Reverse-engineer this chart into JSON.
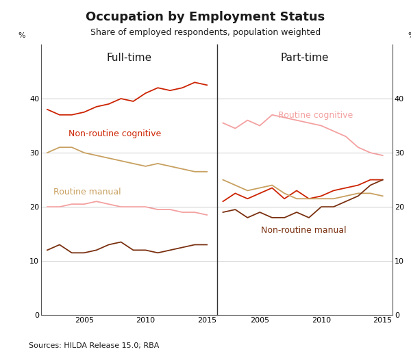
{
  "title": "Occupation by Employment Status",
  "subtitle": "Share of employed respondents, population weighted",
  "source": "Sources: HILDA Release 15.0; RBA",
  "left_panel_title": "Full-time",
  "right_panel_title": "Part-time",
  "ylabel_left": "%",
  "ylabel_right": "%",
  "ylim": [
    0,
    50
  ],
  "yticks": [
    0,
    10,
    20,
    30,
    40
  ],
  "years_ft": [
    2002,
    2003,
    2004,
    2005,
    2006,
    2007,
    2008,
    2009,
    2010,
    2011,
    2012,
    2013,
    2014,
    2015
  ],
  "years_pt": [
    2002,
    2003,
    2004,
    2005,
    2006,
    2007,
    2008,
    2009,
    2010,
    2011,
    2012,
    2013,
    2014,
    2015
  ],
  "ft_nonroutine_cognitive": [
    38,
    37,
    37,
    37.5,
    38.5,
    39,
    40,
    39.5,
    41,
    42,
    41.5,
    42,
    43,
    42.5
  ],
  "ft_routine_manual": [
    30,
    31,
    31,
    30,
    29.5,
    29,
    28.5,
    28,
    27.5,
    28,
    27.5,
    27,
    26.5,
    26.5
  ],
  "ft_routine_cognitive": [
    20,
    20,
    20.5,
    20.5,
    21,
    20.5,
    20,
    20,
    20,
    19.5,
    19.5,
    19,
    19,
    18.5
  ],
  "ft_nonroutine_manual": [
    12,
    13,
    11.5,
    11.5,
    12,
    13,
    13.5,
    12,
    12,
    11.5,
    12,
    12.5,
    13,
    13
  ],
  "pt_routine_cognitive": [
    35.5,
    34.5,
    36,
    35,
    37,
    36.5,
    36,
    35.5,
    35,
    34,
    33,
    31,
    30,
    29.5
  ],
  "pt_nonroutine_cognitive": [
    21,
    22.5,
    21.5,
    22.5,
    23.5,
    21.5,
    23,
    21.5,
    22,
    23,
    23.5,
    24,
    25,
    25
  ],
  "pt_routine_manual": [
    25,
    24,
    23,
    23.5,
    24,
    22.5,
    21.5,
    21.5,
    21.5,
    21.5,
    22,
    22.5,
    22.5,
    22
  ],
  "pt_nonroutine_manual": [
    19,
    19.5,
    18,
    19,
    18,
    18,
    19,
    18,
    20,
    20,
    21,
    22,
    24,
    25
  ],
  "color_nonroutine_cognitive": "#cc2200",
  "color_routine_manual": "#c8a060",
  "color_routine_cognitive": "#f4a0a0",
  "color_nonroutine_manual": "#7a3010",
  "background_color": "#ffffff",
  "panel_label_fontsize": 11,
  "title_fontsize": 13,
  "subtitle_fontsize": 9,
  "tick_fontsize": 8,
  "annotation_fontsize": 9,
  "source_fontsize": 8
}
